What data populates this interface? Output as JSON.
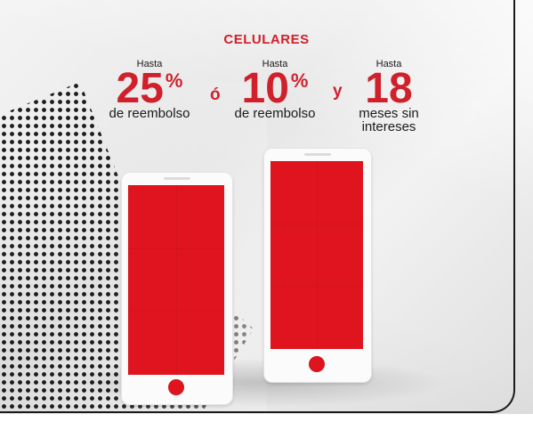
{
  "title": "CELULARES",
  "offers": [
    {
      "hasta": "Hasta",
      "value": "25",
      "unit": "%",
      "sub": "de reembolso"
    },
    {
      "hasta": "Hasta",
      "value": "10",
      "unit": "%",
      "sub": "de reembolso"
    },
    {
      "hasta": "Hasta",
      "value": "18",
      "unit": "",
      "sub_line1": "meses sin",
      "sub_line2": "intereses"
    }
  ],
  "separators": {
    "o": "ó",
    "y": "y"
  },
  "colors": {
    "accent": "#d0202b",
    "screen": "#e0141f",
    "text": "#1a1a1a"
  }
}
